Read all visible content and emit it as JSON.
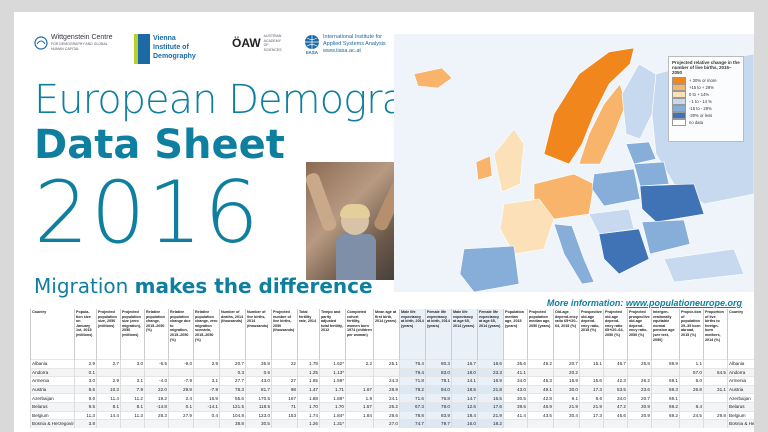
{
  "logos": {
    "wittgenstein": {
      "name": "Wittgenstein Centre",
      "sub": "FOR DEMOGRAPHY AND GLOBAL HUMAN CAPITAL"
    },
    "vid": {
      "lines": [
        "Vienna",
        "Institute of",
        "Demography"
      ]
    },
    "oeaw": {
      "name": "ÖAW",
      "sub": "AUSTRIAN ACADEMY OF SCIENCES"
    },
    "iiasa": {
      "lines": [
        "International Institute for",
        "Applied Systems Analysis",
        "www.iiasa.ac.at"
      ],
      "mark": "IIASA"
    }
  },
  "title": {
    "line1": "European Demographic",
    "line2": "Data Sheet",
    "line3": "2016"
  },
  "migration_heading": {
    "regular": "Migration ",
    "bold": "makes the difference"
  },
  "more_info": {
    "label": "More information: ",
    "link": "www.populationeurope.org"
  },
  "map_legend": {
    "title": "Projected relative change in the number of live births, 2015–2050",
    "items": [
      {
        "label": "+ 30% or more",
        "color": "#f0861c"
      },
      {
        "label": "+15 to + 29%",
        "color": "#f7b46a"
      },
      {
        "label": "0 to + 14%",
        "color": "#fbe0b8"
      },
      {
        "label": "- 1 to - 14 %",
        "color": "#c7d9ee"
      },
      {
        "label": "-15 to - 29%",
        "color": "#86aed8"
      },
      {
        "label": "-30% or less",
        "color": "#3f73b6"
      },
      {
        "label": "no data",
        "color": "#ffffff"
      }
    ]
  },
  "table": {
    "headers": [
      "Country",
      "Popula-tion size on January 1st, 2015 (millions)",
      "Projected population size, 2050 (millions)",
      "Projected population size (zero migration), 2050 (millions)",
      "Relative population change, 2015–2050 (%)",
      "Relative population change due to migration, 2015–2050 (%)",
      "Relative population change, zero migration scenario, 2015–2050 (%)",
      "Number of deaths, 2014 (thousands)",
      "Number of live births, 2014 (thousands)",
      "Projected number of live births, 2050 (thousands)",
      "Total fertility rate, 2014",
      "Tempo and parity adjusted total fertility, 2012",
      "Completed cohort fertility, women born 1974 (children per woman)",
      "Mean age at first birth, 2014 (years)",
      "Male life expectancy at birth, 2014 (years)",
      "Female life expectancy at birth, 2014 (years)",
      "Male life expectancy at age 65, 2014 (years)",
      "Female life expectancy at age 65, 2014 (years)",
      "Population median age, 2015 (years)",
      "Projected population median age, 2050 (years)",
      "Old-age depend-ency ratio 65+/20–64, 2015 (%)",
      "Prospective old-age depend-ency ratio, 2015 (%)",
      "Projected old-age depend-ency ratio 65+/20–64, 2050 (%)",
      "Projected prospective old-age depend-ency ratio, 2050 (%)",
      "Intergen-erationally equitable normal pension age (see text, 2050)",
      "Propor-tion of population 25–39 born abroad, 2015 (%)",
      "Proportion of live births to foreign-born mothers, 2014 (%)",
      "Country"
    ],
    "rows": [
      [
        "Albania",
        "2.9",
        "2.7",
        "3.0",
        "-6.5",
        "-9.0",
        "2.9",
        "20.7",
        "35.8",
        "22",
        "1.78",
        "1.62*",
        "2.2",
        "25.1",
        "76.4",
        "80.3",
        "16.7",
        "18.6",
        "35.6",
        "49.2",
        "20.7",
        "15.1",
        "46.7",
        "25.8",
        "69.9",
        "1.1",
        "",
        "Albania"
      ],
      [
        "Andorra",
        "0.1",
        "",
        "",
        "",
        "",
        "",
        "0.3",
        "0.6",
        "",
        "1.25",
        "1.13*",
        "",
        "",
        "79.4",
        "83.0",
        "18.0",
        "23.3",
        "41.1",
        "",
        "20.2",
        "",
        "",
        "",
        "",
        "57.0",
        "64.5",
        "Andorra"
      ],
      [
        "Armenia",
        "3.0",
        "2.9",
        "3.1",
        "-4.0",
        "-7.9",
        "3.1",
        "27.7",
        "43.0",
        "27",
        "1.65",
        "1.59*",
        "",
        "24.3",
        "71.8",
        "78.1",
        "14.1",
        "16.9",
        "34.0",
        "45.3",
        "16.9",
        "15.6",
        "42.3",
        "26.2",
        "69.1",
        "6.0",
        "",
        "Armenia"
      ],
      [
        "Austria",
        "8.6",
        "10.3",
        "7.9",
        "22.0",
        "29.9",
        "-7.9",
        "78.3",
        "81.7",
        "98",
        "1.47",
        "1.71",
        "1.67",
        "28.9",
        "79.2",
        "84.0",
        "18.5",
        "21.8",
        "43.0",
        "49.1",
        "30.0",
        "17.3",
        "53.5",
        "23.6",
        "69.3",
        "26.8",
        "31.1",
        "Austria"
      ],
      [
        "Azerbaijan",
        "9.6",
        "11.4",
        "11.2",
        "19.2",
        "2.4",
        "16.9",
        "55.6",
        "170.5",
        "167",
        "1.88",
        "1.88*",
        "1.9",
        "24.1",
        "71.6",
        "76.8",
        "14.7",
        "16.5",
        "30.5",
        "42.8",
        "9.1",
        "8.6",
        "34.0",
        "20.7",
        "69.1",
        "",
        "",
        "Azerbaijan"
      ],
      [
        "Belarus",
        "9.5",
        "8.1",
        "8.1",
        "-14.8",
        "0.1",
        "-14.1",
        "121.5",
        "118.5",
        "71",
        "1.70",
        "1.70",
        "1.57",
        "25.2",
        "67.3",
        "78.0",
        "12.6",
        "17.6",
        "39.5",
        "46.9",
        "21.9",
        "21.9",
        "47.2",
        "30.9",
        "69.2",
        "8.4",
        "",
        "Belarus"
      ],
      [
        "Belgium",
        "11.3",
        "14.4",
        "11.3",
        "28.3",
        "27.9",
        "0.4",
        "104.8",
        "123.0",
        "153",
        "1.74",
        "1.84*",
        "1.84",
        "28.6",
        "78.8",
        "83.9",
        "18.4",
        "21.9",
        "41.4",
        "43.5",
        "30.4",
        "17.3",
        "46.6",
        "20.9",
        "69.2",
        "24.5",
        "29.8",
        "Belgium"
      ],
      [
        "Bosnia & Herzegovina",
        "3.8",
        "",
        "",
        "",
        "",
        "",
        "38.8",
        "30.5",
        "",
        "1.26",
        "1.31*",
        "",
        "27.0",
        "74.7",
        "79.7",
        "16.0",
        "18.2",
        "",
        "",
        "",
        "",
        "",
        "",
        "",
        "",
        "",
        "Bosnia & Herzegovina"
      ]
    ]
  }
}
